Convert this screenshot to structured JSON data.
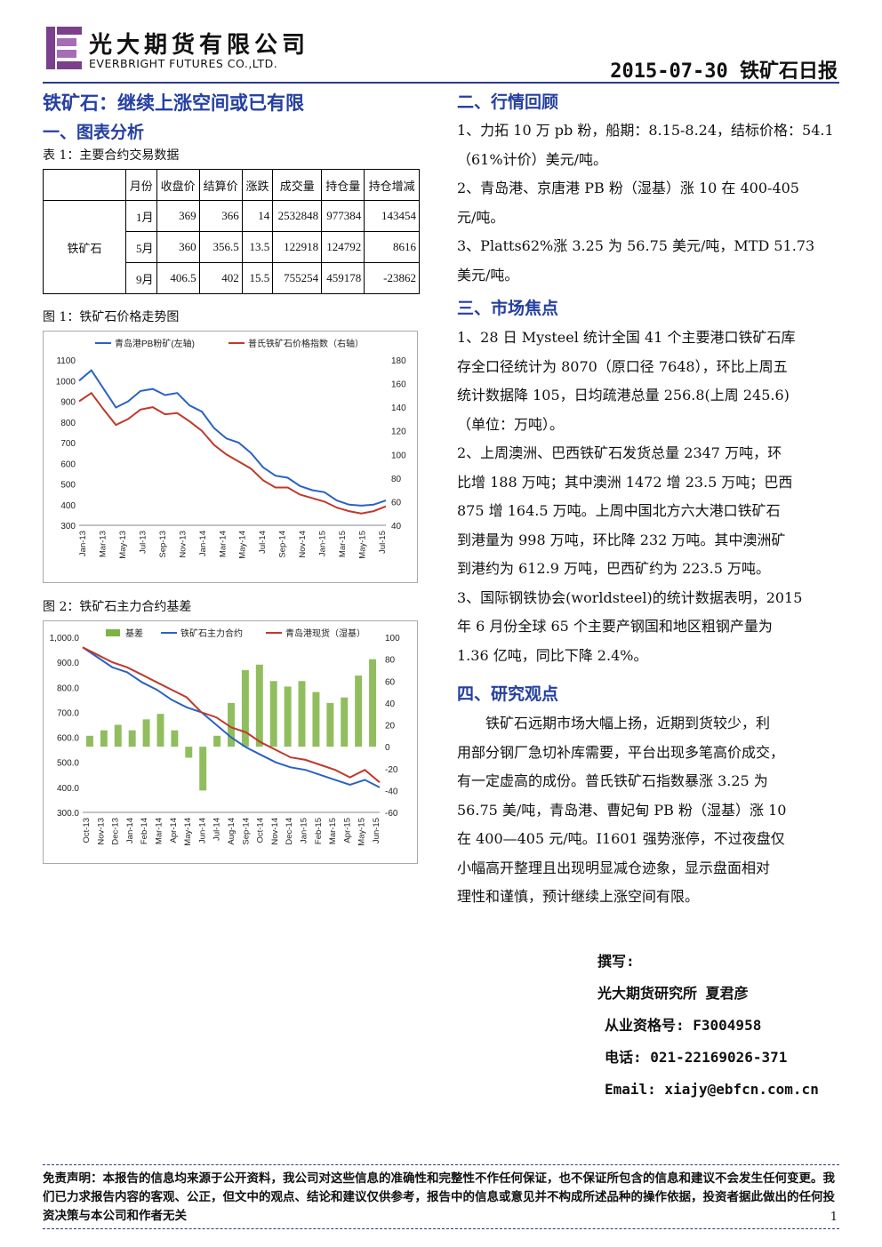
{
  "header": {
    "company_cn": "光大期货有限公司",
    "company_en": "EVERBRIGHT FUTURES CO.,LTD.",
    "date_title": "2015-07-30 铁矿石日报"
  },
  "headline": "铁矿石：继续上涨空间或已有限",
  "section1": {
    "title": "一、图表分析",
    "table_caption": "表 1：主要合约交易数据",
    "table": {
      "headers": [
        "月份",
        "收盘价",
        "结算价",
        "涨跌",
        "成交量",
        "持仓量",
        "持仓增减"
      ],
      "row_label": "铁矿石",
      "rows": [
        [
          "1月",
          "369",
          "366",
          "14",
          "2532848",
          "977384",
          "143454"
        ],
        [
          "5月",
          "360",
          "356.5",
          "13.5",
          "122918",
          "124792",
          "8616"
        ],
        [
          "9月",
          "406.5",
          "402",
          "15.5",
          "755254",
          "459178",
          "-23862"
        ]
      ]
    },
    "fig1_caption": "图 1：铁矿石价格走势图",
    "fig2_caption": "图 2：铁矿石主力合约基差"
  },
  "chart_data": [
    {
      "type": "line",
      "legend": [
        "青岛港PB粉矿(左轴)",
        "普氏铁矿石价格指数（右轴）"
      ],
      "y_left_ticks": [
        "1100",
        "1000",
        "900",
        "800",
        "700",
        "600",
        "500",
        "400",
        "300"
      ],
      "y_right_ticks": [
        "180",
        "160",
        "140",
        "120",
        "100",
        "80",
        "60",
        "40"
      ],
      "x_ticks": [
        "Jan-13",
        "Mar-13",
        "May-13",
        "Jul-13",
        "Sep-13",
        "Nov-13",
        "Jan-14",
        "Mar-14",
        "May-14",
        "Jul-14",
        "Sep-14",
        "Nov-14",
        "Jan-15",
        "Mar-15",
        "May-15",
        "Jul-15"
      ],
      "ylim_left": [
        300,
        1100
      ],
      "ylim_right": [
        40,
        180
      ],
      "series": [
        {
          "name": "青岛港PB粉矿(左轴)",
          "axis": "left",
          "color": "#2a62c4",
          "values": [
            1000,
            1050,
            960,
            870,
            900,
            950,
            960,
            930,
            940,
            880,
            850,
            770,
            720,
            700,
            650,
            580,
            540,
            530,
            490,
            470,
            460,
            420,
            400,
            395,
            400,
            420
          ]
        },
        {
          "name": "普氏铁矿石价格指数（右轴）",
          "axis": "right",
          "color": "#c0392b",
          "values": [
            145,
            152,
            138,
            125,
            130,
            138,
            140,
            134,
            135,
            128,
            120,
            108,
            100,
            94,
            88,
            78,
            72,
            72,
            66,
            63,
            60,
            55,
            52,
            50,
            52,
            56
          ]
        }
      ]
    },
    {
      "type": "bar+line",
      "legend": [
        "基差",
        "铁矿石主力合约",
        "青岛港现货（湿基）"
      ],
      "y_left_ticks": [
        "1,000.0",
        "900.0",
        "800.0",
        "700.0",
        "600.0",
        "500.0",
        "400.0",
        "300.0"
      ],
      "y_right_ticks": [
        "100",
        "80",
        "60",
        "40",
        "20",
        "0",
        "-20",
        "-40",
        "-60"
      ],
      "x_ticks": [
        "Oct-13",
        "Nov-13",
        "Dec-13",
        "Jan-14",
        "Feb-14",
        "Mar-14",
        "Apr-14",
        "May-14",
        "Jun-14",
        "Jul-14",
        "Aug-14",
        "Sep-14",
        "Oct-14",
        "Nov-14",
        "Dec-14",
        "Jan-15",
        "Feb-15",
        "Mar-15",
        "Apr-15",
        "May-15",
        "Jun-15"
      ],
      "ylim_left": [
        300,
        1000
      ],
      "ylim_right": [
        -60,
        100
      ],
      "series": [
        {
          "name": "基差",
          "axis": "right",
          "color": "#7cb342",
          "values": [
            10,
            15,
            20,
            15,
            25,
            30,
            15,
            -10,
            -40,
            10,
            40,
            70,
            75,
            60,
            55,
            60,
            50,
            40,
            45,
            65,
            80
          ]
        },
        {
          "name": "铁矿石主力合约",
          "axis": "left",
          "color": "#2a62c4",
          "values": [
            960,
            920,
            880,
            860,
            820,
            790,
            750,
            720,
            700,
            650,
            600,
            560,
            530,
            500,
            480,
            470,
            450,
            430,
            410,
            430,
            400
          ]
        },
        {
          "name": "青岛港现货（湿基）",
          "axis": "left",
          "color": "#c0392b",
          "values": [
            960,
            930,
            900,
            880,
            850,
            820,
            790,
            760,
            700,
            680,
            640,
            620,
            580,
            550,
            520,
            510,
            490,
            470,
            440,
            470,
            420
          ]
        }
      ]
    }
  ],
  "section2": {
    "title": "二、行情回顾",
    "lines": [
      "1、力拓 10 万 pb 粉，船期：8.15-8.24，结标价格：54.1",
      "（61%计价）美元/吨。",
      "2、青岛港、京唐港 PB 粉（湿基）涨 10 在 400-405",
      "元/吨。",
      "3、Platts62%涨 3.25 为 56.75 美元/吨，MTD 51.73",
      "美元/吨。"
    ]
  },
  "section3": {
    "title": "三、市场焦点",
    "lines": [
      "1、28 日 Mysteel 统计全国 41 个主要港口铁矿石库",
      "存全口径统计为 8070（原口径 7648），环比上周五",
      "统计数据降 105，日均疏港总量 256.8(上周 245.6)",
      "（单位：万吨）。",
      "2、上周澳洲、巴西铁矿石发货总量 2347 万吨，环",
      "比增 188 万吨；其中澳洲 1472 增 23.5 万吨；巴西",
      "875 增 164.5 万吨。上周中国北方六大港口铁矿石",
      "到港量为 998 万吨，环比降 232 万吨。其中澳洲矿",
      "到港约为 612.9 万吨，巴西矿约为 223.5 万吨。",
      "3、国际钢铁协会(worldsteel)的统计数据表明，2015",
      "年 6 月份全球 65 个主要产钢国和地区粗钢产量为",
      "1.36 亿吨，同比下降 2.4%。"
    ]
  },
  "section4": {
    "title": "四、研究观点",
    "lines": [
      "　　铁矿石远期市场大幅上扬，近期到货较少，利",
      "用部分钢厂急切补库需要，平台出现多笔高价成交，",
      "有一定虚高的成份。普氏铁矿石指数暴涨 3.25 为",
      "56.75 美/吨，青岛港、曹妃甸 PB 粉（湿基）涨 10",
      "在 400—405 元/吨。I1601 强势涨停，不过夜盘仅",
      "小幅高开整理且出现明显减仓迹象，显示盘面相对",
      "理性和谨慎，预计继续上涨空间有限。"
    ]
  },
  "author": {
    "label": "撰写:",
    "name": "光大期货研究所 夏君彦",
    "license": "从业资格号: F3004958",
    "phone": "电话: 021-22169026-371",
    "email": "Email: xiajy@ebfcn.com.cn"
  },
  "disclaimer": "免责声明：本报告的信息均来源于公开资料，我公司对这些信息的准确性和完整性不作任何保证，也不保证所包含的信息和建议不会发生任何变更。我们已力求报告内容的客观、公正，但文中的观点、结论和建议仅供参考，报告中的信息或意见并不构成所述品种的操作依据，投资者据此做出的任何投资决策与本公司和作者无关",
  "page_number": "1",
  "colors": {
    "brand": "#2540a0",
    "logo": "#7b3f8c"
  }
}
